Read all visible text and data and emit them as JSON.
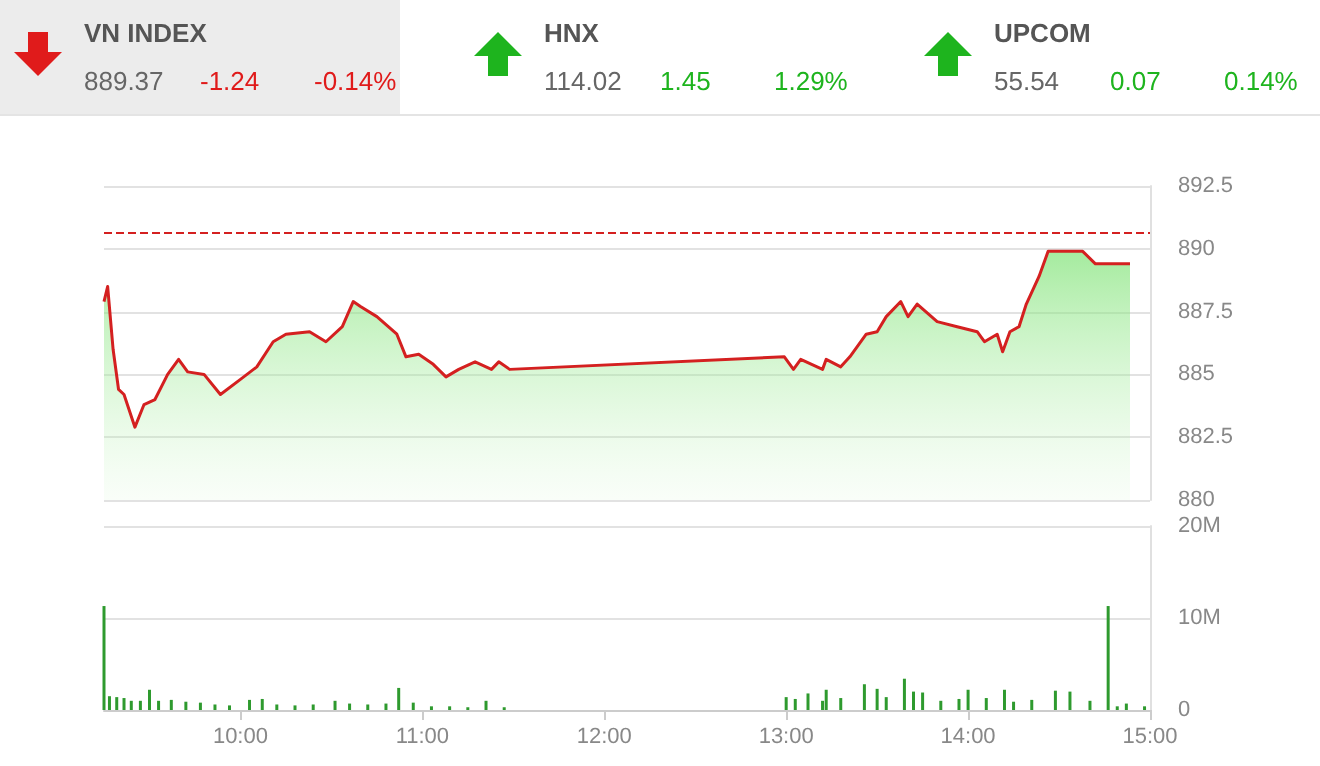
{
  "chart_data": [
    {
      "type": "other",
      "annotations": [
        "VN INDEX",
        "889.37",
        "-1.24",
        "-0.14%",
        "HNX",
        "114.02",
        "1.45",
        "1.29%",
        "UPCOM",
        "55.54",
        "0.07",
        "0.14%"
      ],
      "colors": [
        "#555555",
        "#666666",
        "#e01b1b",
        "#e01b1b",
        "#555555",
        "#666666",
        "#1eb41e",
        "#1eb41e",
        "#555555",
        "#666666",
        "#1eb41e",
        "#1eb41e"
      ]
    },
    {
      "type": "area",
      "tick_labels": "y",
      "grid": "y",
      "xlim": [
        9.25,
        15
      ],
      "ylim": [
        880,
        892.5
      ],
      "yticks": [
        880,
        882.5,
        885,
        887.5,
        890,
        892.5
      ],
      "ref_lines": [
        {
          "axis": "y",
          "value": 890.61,
          "color": "#d42020",
          "line_style": "dashed"
        }
      ],
      "series": [
        {
          "color": "#d42020",
          "x": [
            9.25,
            9.27,
            9.3,
            9.33,
            9.36,
            9.42,
            9.47,
            9.53,
            9.6,
            9.66,
            9.71,
            9.8,
            9.89,
            10.0,
            10.09,
            10.18,
            10.25,
            10.38,
            10.47,
            10.56,
            10.62,
            10.66,
            10.75,
            10.86,
            10.91,
            10.98,
            11.06,
            11.13,
            11.2,
            11.29,
            11.38,
            11.42,
            11.48,
            12.99,
            13.04,
            13.08,
            13.2,
            13.22,
            13.3,
            13.35,
            13.44,
            13.5,
            13.55,
            13.63,
            13.67,
            13.72,
            13.83,
            13.94,
            14.05,
            14.09,
            14.16,
            14.19,
            14.23,
            14.28,
            14.32,
            14.39,
            14.44,
            14.63,
            14.7,
            14.89
          ],
          "values": [
            887.9,
            888.5,
            886.0,
            884.4,
            884.2,
            882.9,
            883.8,
            884.0,
            885.0,
            885.6,
            885.1,
            885.0,
            884.2,
            884.8,
            885.3,
            886.3,
            886.6,
            886.7,
            886.3,
            886.9,
            887.9,
            887.7,
            887.3,
            886.6,
            885.7,
            885.8,
            885.4,
            884.9,
            885.2,
            885.5,
            885.2,
            885.5,
            885.2,
            885.7,
            885.2,
            885.6,
            885.2,
            885.6,
            885.3,
            885.7,
            886.6,
            886.7,
            887.3,
            887.9,
            887.3,
            887.8,
            887.1,
            886.9,
            886.7,
            886.3,
            886.6,
            885.9,
            886.7,
            886.9,
            887.8,
            888.9,
            889.9,
            889.9,
            889.4,
            889.4
          ]
        }
      ]
    },
    {
      "type": "bar",
      "grid": "y",
      "xlim": [
        9.25,
        15
      ],
      "xticks": [
        {
          "value": 10,
          "label": "10:00"
        },
        {
          "value": 11,
          "label": "11:00"
        },
        {
          "value": 12,
          "label": "12:00"
        },
        {
          "value": 13,
          "label": "13:00"
        },
        {
          "value": 14,
          "label": "14:00"
        },
        {
          "value": 15,
          "label": "15:00"
        }
      ],
      "ylim": [
        0,
        20
      ],
      "yticks": [
        0,
        {
          "value": 10,
          "label": "10M"
        },
        {
          "value": 20,
          "label": "20M"
        }
      ],
      "series": [
        {
          "color": "#2e9a2e",
          "x": [
            9.25,
            9.28,
            9.32,
            9.36,
            9.4,
            9.45,
            9.5,
            9.55,
            9.62,
            9.7,
            9.78,
            9.86,
            9.94,
            10.05,
            10.12,
            10.2,
            10.3,
            10.4,
            10.52,
            10.6,
            10.7,
            10.8,
            10.87,
            10.95,
            11.05,
            11.15,
            11.25,
            11.35,
            11.45,
            13.0,
            13.05,
            13.12,
            13.2,
            13.22,
            13.3,
            13.43,
            13.5,
            13.55,
            13.65,
            13.7,
            13.75,
            13.85,
            13.95,
            14.0,
            14.1,
            14.2,
            14.25,
            14.35,
            14.48,
            14.56,
            14.67,
            14.77,
            14.82,
            14.87,
            14.97
          ],
          "values": [
            11.3,
            1.5,
            1.4,
            1.3,
            1.0,
            1.0,
            2.2,
            1.0,
            1.1,
            0.9,
            0.8,
            0.6,
            0.5,
            1.1,
            1.2,
            0.6,
            0.5,
            0.6,
            1.0,
            0.7,
            0.6,
            0.7,
            2.4,
            0.8,
            0.4,
            0.4,
            0.3,
            1.0,
            0.3,
            1.4,
            1.2,
            1.8,
            1.0,
            2.2,
            1.3,
            2.8,
            2.3,
            1.4,
            3.4,
            2.0,
            1.9,
            1.0,
            1.2,
            2.2,
            1.3,
            2.2,
            0.9,
            1.1,
            2.1,
            2.0,
            1.0,
            11.3,
            0.4,
            0.7,
            0.4
          ]
        }
      ]
    }
  ]
}
